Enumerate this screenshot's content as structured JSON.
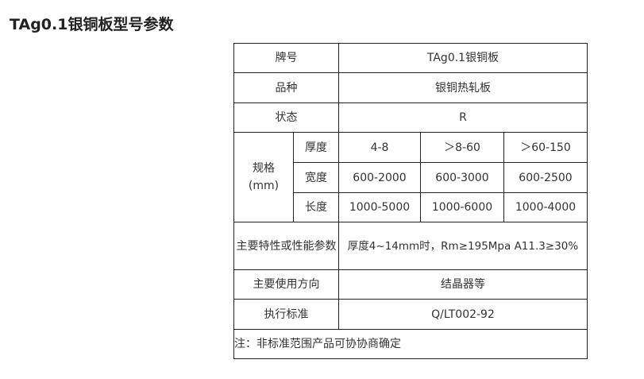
{
  "title": "TAg0.1银铜板型号参数",
  "table": {
    "brand_label": "牌号",
    "brand_value": "TAg0.1银铜板",
    "variety_label": "品种",
    "variety_value": "银铜热轧板",
    "state_label": "状态",
    "state_value": "R",
    "spec_label": "规格",
    "spec_unit": "(mm)",
    "thickness_label": "厚度",
    "thickness": [
      "4-8",
      "＞8-60",
      "＞60-150"
    ],
    "width_label": "宽度",
    "width": [
      "600-2000",
      "600-3000",
      "600-2500"
    ],
    "length_label": "长度",
    "length": [
      "1000-5000",
      "1000-6000",
      "1000-4000"
    ],
    "properties_label": "主要特性或性能参数",
    "properties_value": "厚度4~14mm时，Rm≥195Mpa A11.3≥30%",
    "usage_label": "主要使用方向",
    "usage_value": "结晶器等",
    "standard_label": "执行标准",
    "standard_value": "Q/LT002-92",
    "note": "注：非标准范围产品可协协商确定"
  }
}
